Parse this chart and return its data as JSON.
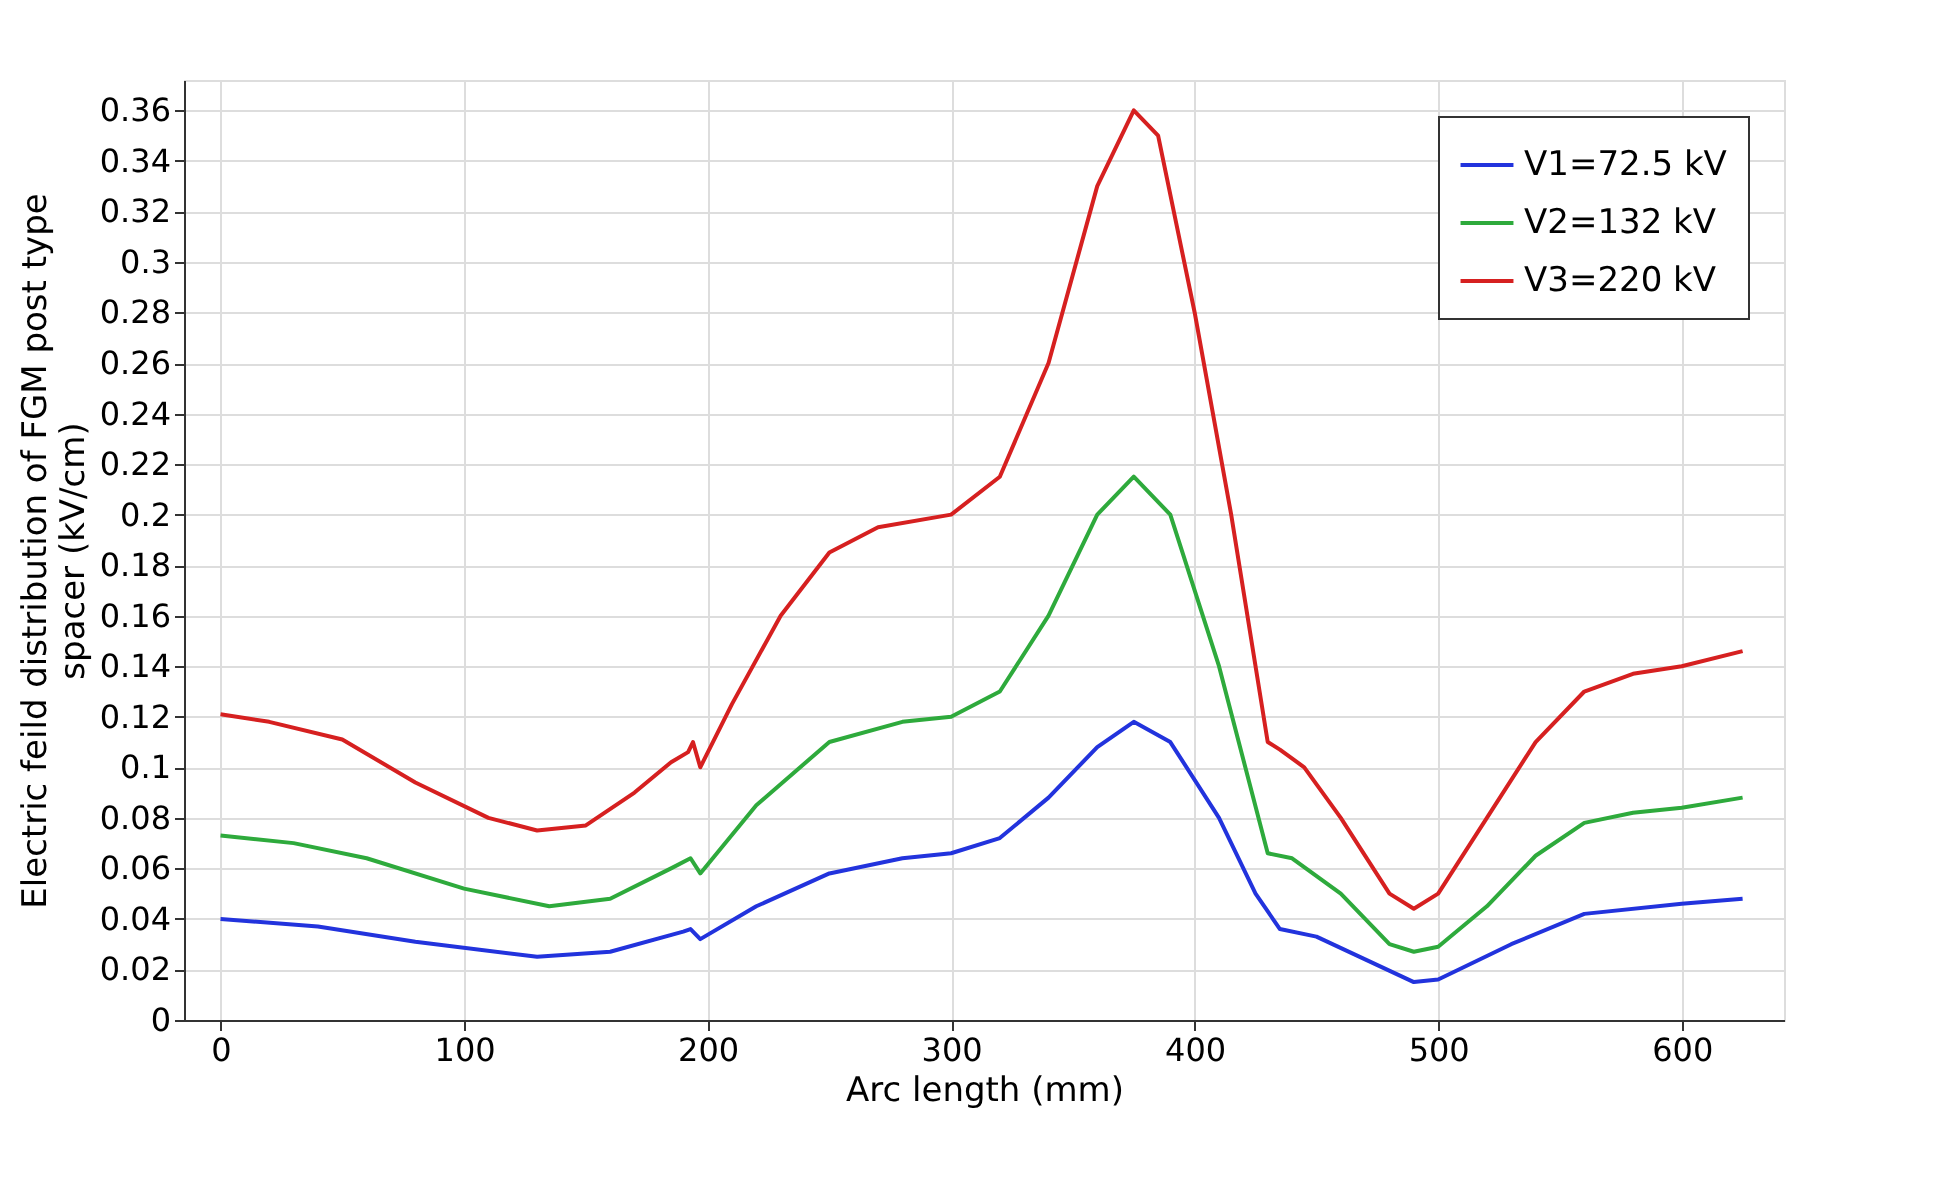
{
  "chart_data": {
    "type": "line",
    "xlabel": "Arc length (mm)",
    "ylabel": "Electric feild distribution of FGM post type\nspacer (kV/cm)",
    "xlim": [
      -15,
      642
    ],
    "xticks": [
      0,
      100,
      200,
      300,
      400,
      500,
      600
    ],
    "ylim": [
      0,
      0.372
    ],
    "yticks": [
      0,
      0.02,
      0.04,
      0.06,
      0.08,
      0.1,
      0.12,
      0.14,
      0.16,
      0.18,
      0.2,
      0.22,
      0.24,
      0.26,
      0.28,
      0.3,
      0.32,
      0.34,
      0.36
    ],
    "grid": true,
    "legend": "top right",
    "line_style": "solid",
    "series": [
      {
        "name": "V1=72.5 kV",
        "color": "#2233dd",
        "x": [
          0,
          40,
          80,
          130,
          160,
          190,
          193,
          197,
          220,
          250,
          280,
          300,
          320,
          340,
          360,
          375,
          390,
          410,
          425,
          435,
          450,
          470,
          490,
          500,
          530,
          560,
          600,
          625
        ],
        "values": [
          0.04,
          0.037,
          0.031,
          0.025,
          0.027,
          0.035,
          0.036,
          0.032,
          0.045,
          0.058,
          0.064,
          0.066,
          0.072,
          0.088,
          0.108,
          0.118,
          0.11,
          0.08,
          0.05,
          0.036,
          0.033,
          0.024,
          0.015,
          0.016,
          0.03,
          0.042,
          0.046,
          0.048
        ]
      },
      {
        "name": "V2=132 kV",
        "color": "#2eaa3c",
        "x": [
          0,
          30,
          60,
          100,
          135,
          160,
          185,
          193,
          197,
          220,
          250,
          280,
          300,
          320,
          340,
          360,
          375,
          390,
          410,
          430,
          440,
          460,
          480,
          490,
          500,
          520,
          540,
          560,
          580,
          600,
          625
        ],
        "values": [
          0.073,
          0.07,
          0.064,
          0.052,
          0.045,
          0.048,
          0.06,
          0.064,
          0.058,
          0.085,
          0.11,
          0.118,
          0.12,
          0.13,
          0.16,
          0.2,
          0.215,
          0.2,
          0.14,
          0.066,
          0.064,
          0.05,
          0.03,
          0.027,
          0.029,
          0.045,
          0.065,
          0.078,
          0.082,
          0.084,
          0.088
        ]
      },
      {
        "name": "V3=220 kV",
        "color": "#d62020",
        "x": [
          0,
          20,
          50,
          80,
          110,
          130,
          150,
          170,
          185,
          192,
          194,
          197,
          210,
          230,
          250,
          270,
          300,
          320,
          340,
          360,
          375,
          385,
          400,
          415,
          430,
          435,
          445,
          460,
          480,
          490,
          500,
          520,
          540,
          560,
          580,
          600,
          625
        ],
        "values": [
          0.121,
          0.118,
          0.111,
          0.094,
          0.08,
          0.075,
          0.077,
          0.09,
          0.102,
          0.106,
          0.11,
          0.1,
          0.125,
          0.16,
          0.185,
          0.195,
          0.2,
          0.215,
          0.26,
          0.33,
          0.36,
          0.35,
          0.28,
          0.2,
          0.11,
          0.107,
          0.1,
          0.08,
          0.05,
          0.044,
          0.05,
          0.08,
          0.11,
          0.13,
          0.137,
          0.14,
          0.146
        ]
      }
    ]
  }
}
